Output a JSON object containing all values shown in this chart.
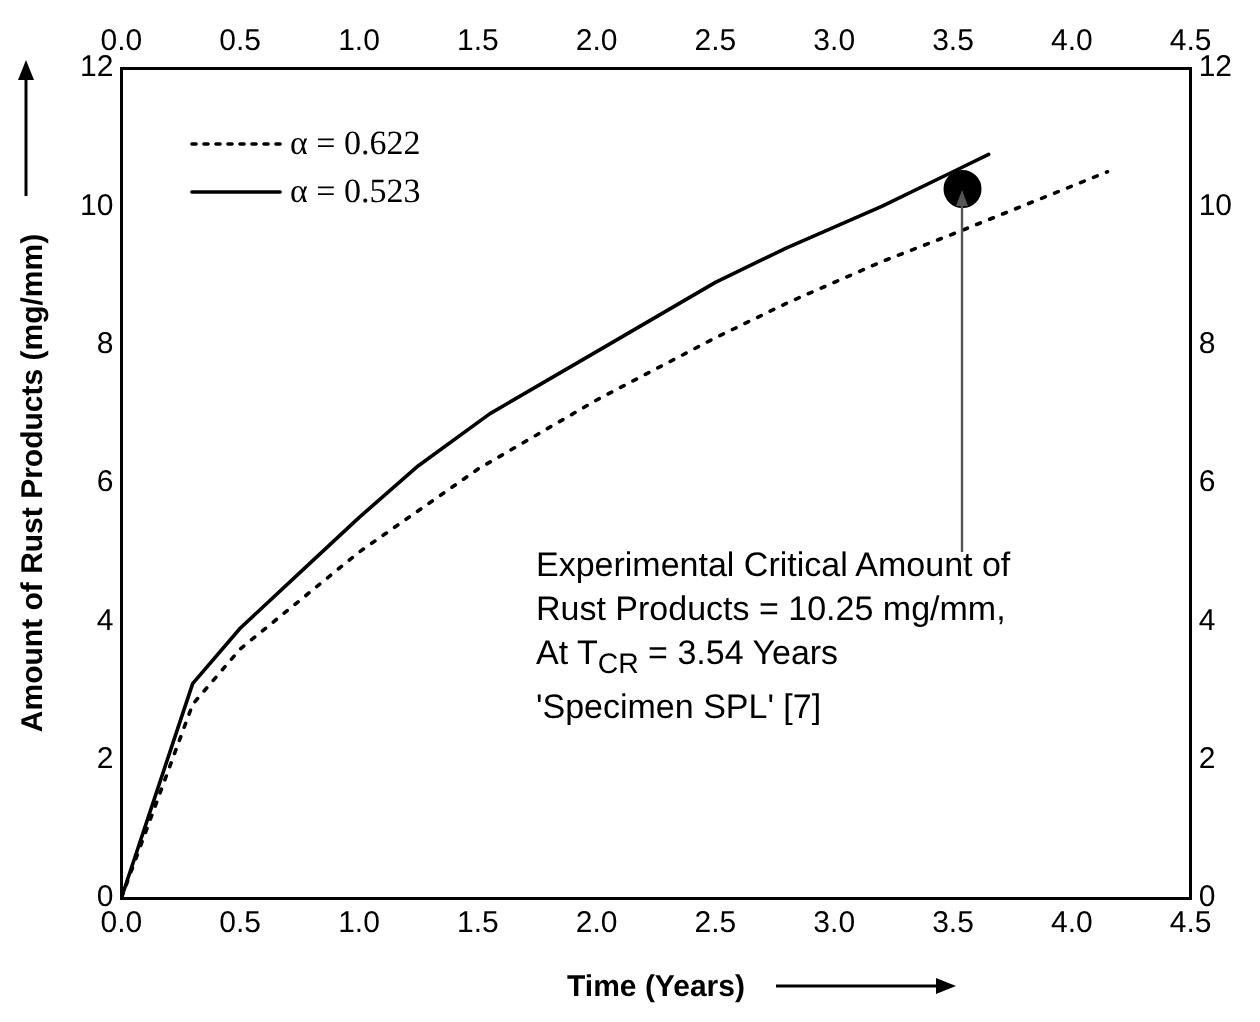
{
  "chart_data": {
    "type": "line",
    "xlabel": "Time (Years)",
    "ylabel": "Amount of Rust Products (mg/mm)",
    "xlim": [
      0,
      4.5
    ],
    "xticks": [
      {
        "value": 0,
        "label": "0.0"
      },
      {
        "value": 0.5,
        "label": "0.5"
      },
      {
        "value": 1,
        "label": "1.0"
      },
      {
        "value": 1.5,
        "label": "1.5"
      },
      {
        "value": 2,
        "label": "2.0"
      },
      {
        "value": 2.5,
        "label": "2.5"
      },
      {
        "value": 3,
        "label": "3.0"
      },
      {
        "value": 3.5,
        "label": "3.5"
      },
      {
        "value": 4,
        "label": "4.0"
      },
      {
        "value": 4.5,
        "label": "4.5"
      }
    ],
    "x2lim": [
      0,
      4.5
    ],
    "x2ticks": [
      {
        "value": 0,
        "label": "0.0"
      },
      {
        "value": 0.5,
        "label": "0.5"
      },
      {
        "value": 1,
        "label": "1.0"
      },
      {
        "value": 1.5,
        "label": "1.5"
      },
      {
        "value": 2,
        "label": "2.0"
      },
      {
        "value": 2.5,
        "label": "2.5"
      },
      {
        "value": 3,
        "label": "3.0"
      },
      {
        "value": 3.5,
        "label": "3.5"
      },
      {
        "value": 4,
        "label": "4.0"
      },
      {
        "value": 4.5,
        "label": "4.5"
      }
    ],
    "ylim": [
      0,
      12
    ],
    "yticks": [
      0,
      2,
      4,
      6,
      8,
      10,
      12
    ],
    "y2lim": [
      0,
      12
    ],
    "y2ticks": [
      0,
      2,
      4,
      6,
      8,
      10,
      12
    ],
    "grid": false,
    "legend": "top left",
    "series": [
      {
        "name": "α = 0.622",
        "type": "line",
        "color": "#000000",
        "line_style": "dotted",
        "marker": "none",
        "x": [
          0,
          0.3,
          0.5,
          0.75,
          1.0,
          1.5,
          2.0,
          2.5,
          2.8,
          3.2,
          3.5,
          4.15
        ],
        "values": [
          0,
          2.8,
          3.6,
          4.3,
          5.0,
          6.2,
          7.2,
          8.1,
          8.6,
          9.2,
          9.6,
          10.5
        ]
      },
      {
        "name": "α = 0.523",
        "type": "line",
        "color": "#000000",
        "line_style": "solid",
        "marker": "none",
        "x": [
          0,
          0.3,
          0.5,
          0.75,
          1.0,
          1.25,
          1.55,
          2.0,
          2.5,
          2.8,
          3.2,
          3.5,
          3.65
        ],
        "values": [
          0,
          3.1,
          3.9,
          4.7,
          5.5,
          6.25,
          7.0,
          7.9,
          8.9,
          9.4,
          10.0,
          10.5,
          10.75
        ]
      },
      {
        "type": "scatter",
        "color": "#000000",
        "marker": "circle",
        "x": [
          3.54
        ],
        "values": [
          10.25
        ]
      }
    ],
    "annotations": [
      {
        "text": "Experimental Critical Amount of\nRust Products = 10.25 mg/mm,\nAt T$_{CR}$ = 3.54 Years\n'Specimen SPL' [7]",
        "x": 3.54,
        "y": 10.25
      }
    ]
  }
}
